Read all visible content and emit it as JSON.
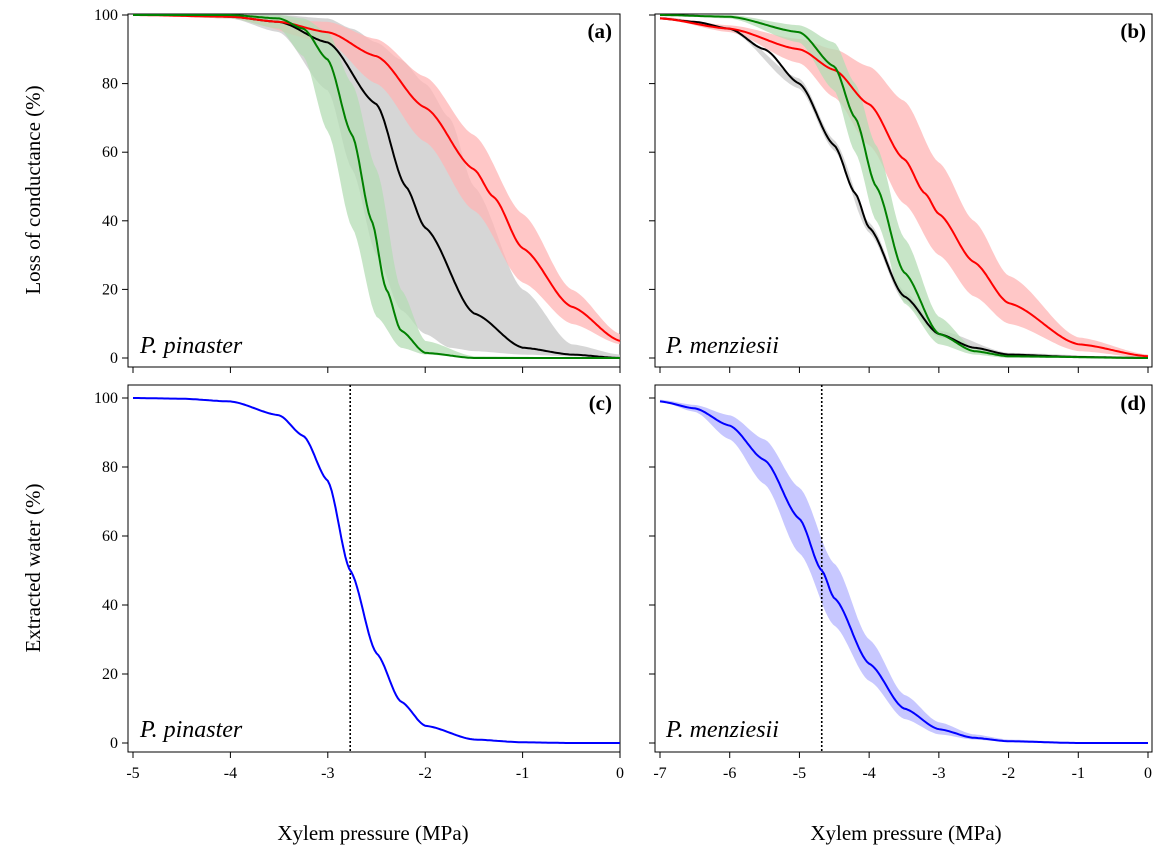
{
  "figure": {
    "xlabel": "Xylem pressure (MPa)",
    "ylabel_top": "Loss of conductance (%)",
    "ylabel_bottom": "Extracted water (%)"
  },
  "colors": {
    "black_curve": "#000000",
    "black_band": "#c8c8c8",
    "red_curve": "#ff0000",
    "red_band": "#ffb4b4",
    "green_curve": "#008000",
    "green_band": "#b4dcb4",
    "blue_curve": "#0000ff",
    "blue_band": "#b4b4ff",
    "reference_line": "#000000"
  },
  "chart_data": [
    {
      "type": "line",
      "panel": "(a)",
      "species": "P. pinaster",
      "xlim": [
        -5,
        0
      ],
      "ylim": [
        0,
        100
      ],
      "xticks": [
        -5,
        -4,
        -3,
        -2,
        -1,
        0
      ],
      "yticks": [
        0,
        20,
        40,
        60,
        80,
        100
      ],
      "ylabel": "Loss of conductance (%)",
      "series": [
        {
          "color": "black",
          "x": [
            -5,
            -4.5,
            -4,
            -3.5,
            -3,
            -2.5,
            -2.2,
            -2,
            -1.5,
            -1,
            -0.5,
            0
          ],
          "y": [
            100,
            100,
            99.5,
            98,
            92,
            74,
            50,
            38,
            13,
            3,
            1,
            0
          ],
          "band": {
            "x": [
              -5,
              -4,
              -3.5,
              -3,
              -2.75,
              -2.5,
              -2.25,
              -2,
              -1.75,
              -1.5,
              -1,
              -0.5,
              0
            ],
            "lower": [
              100,
              99,
              95,
              78,
              55,
              30,
              14,
              7,
              3,
              2,
              1,
              0.5,
              0
            ],
            "upper": [
              100,
              100,
              100,
              99,
              96,
              92,
              87,
              80,
              70,
              50,
              20,
              4,
              1
            ]
          }
        },
        {
          "color": "red",
          "x": [
            -5,
            -4,
            -3.5,
            -3,
            -2.5,
            -2,
            -1.5,
            -1.3,
            -1,
            -0.5,
            0
          ],
          "y": [
            100,
            99.5,
            98,
            95,
            88,
            73,
            55,
            47,
            32,
            15,
            5
          ],
          "band": {
            "x": [
              -5,
              -4,
              -3,
              -2.5,
              -2,
              -1.5,
              -1,
              -0.5,
              0
            ],
            "lower": [
              100,
              99,
              92,
              80,
              63,
              43,
              22,
              10,
              4
            ],
            "upper": [
              100,
              100,
              98,
              93,
              82,
              65,
              42,
              20,
              7
            ]
          }
        },
        {
          "color": "green",
          "x": [
            -5,
            -4,
            -3.5,
            -3.25,
            -3,
            -2.75,
            -2.55,
            -2.4,
            -2.25,
            -2,
            -1.5,
            0
          ],
          "y": [
            100,
            100,
            99,
            96,
            87,
            65,
            40,
            20,
            8,
            1.5,
            0,
            0
          ],
          "band": {
            "x": [
              -5,
              -4,
              -3.5,
              -3.25,
              -3,
              -2.75,
              -2.5,
              -2.25,
              -2,
              -1.5,
              0
            ],
            "lower": [
              100,
              99,
              96,
              88,
              66,
              38,
              12,
              3,
              1,
              0,
              0
            ],
            "upper": [
              100,
              100,
              100,
              99,
              95,
              80,
              55,
              20,
              5,
              0.5,
              0
            ]
          }
        }
      ]
    },
    {
      "type": "line",
      "panel": "(b)",
      "species": "P. menziesii",
      "xlim": [
        -7,
        0
      ],
      "ylim": [
        0,
        100
      ],
      "xticks": [
        -7,
        -6,
        -5,
        -4,
        -3,
        -2,
        -1,
        0
      ],
      "yticks": [
        0,
        20,
        40,
        60,
        80,
        100
      ],
      "series": [
        {
          "color": "black",
          "x": [
            -7,
            -6.5,
            -6,
            -5.5,
            -5,
            -4.5,
            -4.2,
            -4,
            -3.5,
            -3,
            -2.5,
            -2,
            -1,
            0
          ],
          "y": [
            99,
            98,
            96,
            90,
            80,
            62,
            48,
            38,
            18,
            7,
            3,
            1,
            0.3,
            0
          ],
          "band": {
            "x": [
              -7,
              -6,
              -5,
              -4.5,
              -4,
              -3.5,
              -3,
              -2,
              0
            ],
            "lower": [
              99,
              95.5,
              78.5,
              60.5,
              36.5,
              16.5,
              6,
              0.5,
              0
            ],
            "upper": [
              99.5,
              96.5,
              81.5,
              63.5,
              39.5,
              19.5,
              8,
              1.5,
              0
            ]
          }
        },
        {
          "color": "red",
          "x": [
            -7,
            -6,
            -5,
            -4.5,
            -4,
            -3.5,
            -3.2,
            -3,
            -2.5,
            -2,
            -1,
            0
          ],
          "y": [
            99,
            96,
            90,
            84,
            74,
            58,
            48,
            42,
            28,
            16,
            4,
            0.5
          ],
          "band": {
            "x": [
              -7,
              -6,
              -5,
              -4.5,
              -4,
              -3.5,
              -3,
              -2.5,
              -2,
              -1,
              0
            ],
            "lower": [
              99,
              95,
              86,
              76,
              62,
              45,
              30,
              18,
              10,
              2,
              0
            ],
            "upper": [
              99.5,
              97,
              93,
              90,
              85,
              75,
              57,
              40,
              24,
              6,
              1
            ]
          }
        },
        {
          "color": "green",
          "x": [
            -7,
            -6,
            -5,
            -4.5,
            -4.2,
            -3.9,
            -3.5,
            -3,
            -2.5,
            -2,
            0
          ],
          "y": [
            100,
            99.5,
            95,
            85,
            70,
            50,
            25,
            7,
            2,
            0.5,
            0
          ],
          "band": {
            "x": [
              -7,
              -6,
              -5,
              -4.5,
              -4.2,
              -3.9,
              -3.5,
              -3,
              -2.5,
              -2,
              0
            ],
            "lower": [
              100,
              99,
              92,
              78,
              60,
              40,
              16,
              4,
              1,
              0,
              0
            ],
            "upper": [
              100,
              100,
              97,
              92,
              80,
              62,
              35,
              12,
              3,
              1,
              0
            ]
          }
        }
      ]
    },
    {
      "type": "line",
      "panel": "(c)",
      "species": "P. pinaster",
      "xlim": [
        -5,
        0
      ],
      "ylim": [
        0,
        100
      ],
      "xticks": [
        -5,
        -4,
        -3,
        -2,
        -1,
        0
      ],
      "yticks": [
        0,
        20,
        40,
        60,
        80,
        100
      ],
      "ylabel": "Extracted water (%)",
      "xlabel": "Xylem pressure (MPa)",
      "reference_x": -2.77,
      "series": [
        {
          "color": "blue",
          "x": [
            -5,
            -4.5,
            -4,
            -3.5,
            -3.25,
            -3,
            -2.77,
            -2.5,
            -2.25,
            -2,
            -1.5,
            -1,
            -0.5,
            0
          ],
          "y": [
            100,
            99.8,
            99,
            95,
            89,
            76,
            50,
            26,
            12,
            5,
            1,
            0.2,
            0,
            0
          ]
        }
      ]
    },
    {
      "type": "line",
      "panel": "(d)",
      "species": "P. menziesii",
      "xlim": [
        -7,
        0
      ],
      "ylim": [
        0,
        100
      ],
      "xticks": [
        -7,
        -6,
        -5,
        -4,
        -3,
        -2,
        -1,
        0
      ],
      "yticks": [
        0,
        20,
        40,
        60,
        80,
        100
      ],
      "xlabel": "Xylem pressure (MPa)",
      "reference_x": -4.68,
      "series": [
        {
          "color": "blue",
          "x": [
            -7,
            -6.5,
            -6,
            -5.5,
            -5,
            -4.68,
            -4.5,
            -4,
            -3.5,
            -3,
            -2.5,
            -2,
            -1,
            0
          ],
          "y": [
            99,
            97,
            92,
            82,
            65,
            50,
            42,
            23,
            10,
            4,
            1.5,
            0.5,
            0,
            0
          ],
          "band": {
            "x": [
              -7,
              -6.5,
              -6,
              -5.5,
              -5,
              -4.5,
              -4,
              -3.5,
              -3,
              -2.5,
              -2,
              -1,
              0
            ],
            "lower": [
              99,
              96,
              88,
              75,
              55,
              34,
              18,
              7,
              2.5,
              1,
              0.3,
              0,
              0
            ],
            "upper": [
              99.5,
              98,
              95,
              88,
              74,
              52,
              30,
              14,
              6,
              2.5,
              1,
              0.2,
              0
            ]
          }
        }
      ]
    }
  ]
}
